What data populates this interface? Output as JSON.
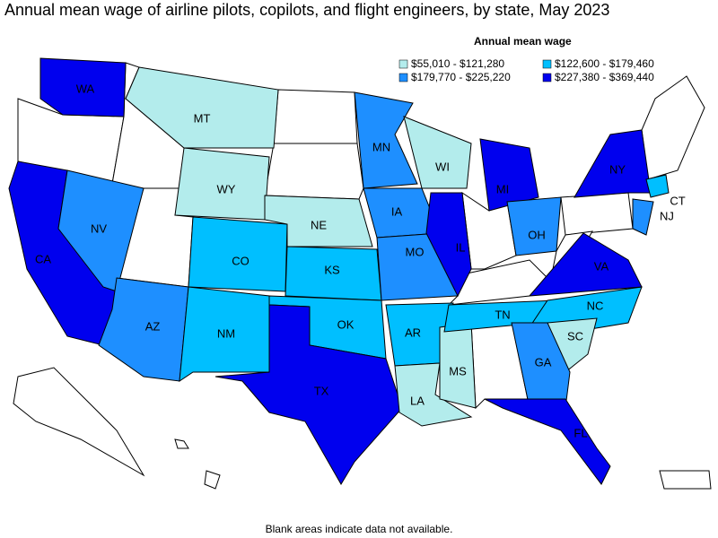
{
  "title": "Annual mean wage of airline pilots, copilots, and flight engineers, by state, May 2023",
  "legend": {
    "title": "Annual mean wage",
    "items": [
      {
        "label": "$55,010 - $121,280",
        "color": "#b3ecec"
      },
      {
        "label": "$122,600 - $179,460",
        "color": "#00bfff"
      },
      {
        "label": "$179,770 - $225,220",
        "color": "#1e8fff"
      },
      {
        "label": "$227,380 - $369,440",
        "color": "#0000ee"
      }
    ]
  },
  "states": [
    {
      "label": "WA",
      "color": "#0000ee"
    },
    {
      "label": "CA",
      "color": "#0000ee"
    },
    {
      "label": "NV",
      "color": "#1e8fff"
    },
    {
      "label": "MT",
      "color": "#b3ecec"
    },
    {
      "label": "WY",
      "color": "#b3ecec"
    },
    {
      "label": "AZ",
      "color": "#1e8fff"
    },
    {
      "label": "CO",
      "color": "#00bfff"
    },
    {
      "label": "NM",
      "color": "#00bfff"
    },
    {
      "label": "NE",
      "color": "#b3ecec"
    },
    {
      "label": "KS",
      "color": "#00bfff"
    },
    {
      "label": "OK",
      "color": "#00bfff"
    },
    {
      "label": "TX",
      "color": "#0000ee"
    },
    {
      "label": "MN",
      "color": "#1e8fff"
    },
    {
      "label": "IA",
      "color": "#1e8fff"
    },
    {
      "label": "MO",
      "color": "#1e8fff"
    },
    {
      "label": "AR",
      "color": "#00bfff"
    },
    {
      "label": "LA",
      "color": "#b3ecec"
    },
    {
      "label": "MS",
      "color": "#b3ecec"
    },
    {
      "label": "WI",
      "color": "#b3ecec"
    },
    {
      "label": "IL",
      "color": "#0000ee"
    },
    {
      "label": "MI",
      "color": "#0000ee"
    },
    {
      "label": "OH",
      "color": "#1e8fff"
    },
    {
      "label": "TN",
      "color": "#00bfff"
    },
    {
      "label": "NC",
      "color": "#00bfff"
    },
    {
      "label": "SC",
      "color": "#b3ecec"
    },
    {
      "label": "GA",
      "color": "#1e8fff"
    },
    {
      "label": "FL",
      "color": "#0000ee"
    },
    {
      "label": "VA",
      "color": "#0000ee"
    },
    {
      "label": "NY",
      "color": "#0000ee"
    },
    {
      "label": "CT",
      "color": "#00bfff"
    },
    {
      "label": "NJ",
      "color": "#1e8fff"
    }
  ],
  "footnote": "Blank areas indicate data not available."
}
